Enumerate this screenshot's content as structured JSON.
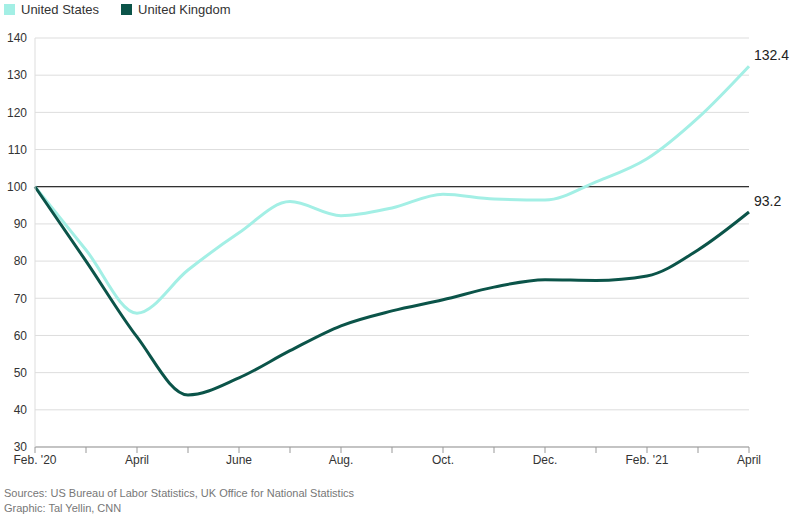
{
  "chart_data": {
    "type": "line",
    "categories": [
      "Feb. '20",
      null,
      "April",
      null,
      "June",
      null,
      "Aug.",
      null,
      "Oct.",
      null,
      "Dec.",
      null,
      "Feb. '21",
      null,
      "April"
    ],
    "series": [
      {
        "name": "United States",
        "color": "#a3efe5",
        "values": [
          100,
          83,
          66,
          77.6,
          87.6,
          96,
          92.2,
          94.3,
          98,
          96.7,
          96.4,
          101.3,
          107.5,
          118.5,
          132.4
        ],
        "value_labels": [
          null,
          null,
          null,
          null,
          null,
          null,
          null,
          null,
          null,
          null,
          null,
          null,
          null,
          null,
          "132.4"
        ]
      },
      {
        "name": "United Kingdom",
        "color": "#0b5449",
        "values": [
          100,
          80,
          59.6,
          44,
          48.6,
          55.9,
          62.6,
          66.6,
          69.6,
          73,
          75,
          74.8,
          76,
          83,
          93.2
        ],
        "value_labels": [
          null,
          null,
          null,
          null,
          null,
          null,
          null,
          null,
          null,
          null,
          null,
          null,
          null,
          null,
          "93.2"
        ]
      }
    ],
    "ylim": [
      30,
      140
    ],
    "yticks": [
      30,
      40,
      50,
      60,
      70,
      80,
      90,
      100,
      110,
      120,
      130,
      140
    ],
    "grid": true,
    "legend": "top-left",
    "data_labels": true,
    "annotations": [
      "Sources: US Bureau of Labor Statistics, UK Office for National Statistics",
      "Graphic: Tal Yellin, CNN"
    ]
  }
}
